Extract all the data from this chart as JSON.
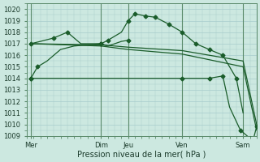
{
  "xlabel": "Pression niveau de la mer( hPa )",
  "background_color": "#cce8e0",
  "grid_color": "#a8cccc",
  "line_color": "#1a5c2a",
  "vline_color": "#5a8a6a",
  "ylim": [
    1009,
    1020.5
  ],
  "yticks": [
    1009,
    1010,
    1011,
    1012,
    1013,
    1014,
    1015,
    1016,
    1017,
    1018,
    1019,
    1020
  ],
  "xlim": [
    0,
    17
  ],
  "x_tick_positions": [
    0.3,
    5.5,
    7.5,
    11.5,
    16.0
  ],
  "x_tick_labels": [
    "Mer",
    "Dim",
    "Jeu",
    "Ven",
    "Sam"
  ],
  "x_vline_positions": [
    0.3,
    5.5,
    7.5,
    11.5,
    16.0
  ],
  "line1_x": [
    0.3,
    0.8,
    1.5,
    2.5,
    3.5,
    5.5,
    6.0,
    7.0,
    7.5,
    8.0,
    8.8,
    9.5,
    10.5,
    11.5,
    12.5,
    13.5,
    14.5,
    15.5,
    16.0
  ],
  "line1_y": [
    1014.0,
    1015.0,
    1015.5,
    1016.5,
    1016.8,
    1017.0,
    1017.3,
    1018.0,
    1019.0,
    1019.6,
    1019.4,
    1019.3,
    1018.7,
    1018.0,
    1017.0,
    1016.5,
    1016.0,
    1014.0,
    1011.0
  ],
  "line1_mx": [
    0.3,
    0.8,
    5.5,
    6.0,
    7.5,
    8.0,
    8.8,
    9.5,
    10.5,
    11.5,
    12.5,
    13.5,
    14.5,
    15.5
  ],
  "line1_my": [
    1014.0,
    1015.0,
    1017.0,
    1017.3,
    1019.0,
    1019.6,
    1019.4,
    1019.3,
    1018.7,
    1018.0,
    1017.0,
    1016.5,
    1016.0,
    1014.0
  ],
  "line2_x": [
    0.3,
    1.0,
    2.0,
    3.0,
    4.0,
    5.5,
    6.0,
    7.0,
    7.5
  ],
  "line2_y": [
    1017.0,
    1017.2,
    1017.5,
    1018.0,
    1017.0,
    1017.0,
    1016.8,
    1017.2,
    1017.3
  ],
  "line2_mx": [
    0.3,
    2.0,
    3.0,
    5.5,
    7.5
  ],
  "line2_my": [
    1017.0,
    1017.5,
    1018.0,
    1017.0,
    1017.3
  ],
  "line3_x": [
    0.3,
    5.5,
    7.5,
    11.5,
    16.0,
    17.0
  ],
  "line3_y": [
    1017.0,
    1016.9,
    1016.7,
    1016.4,
    1015.5,
    1010.0
  ],
  "line4_x": [
    0.3,
    5.5,
    7.5,
    11.5,
    16.0,
    17.0
  ],
  "line4_y": [
    1017.0,
    1016.8,
    1016.5,
    1016.1,
    1015.0,
    1009.5
  ],
  "line5_x": [
    0.3,
    11.5,
    13.5,
    14.5,
    15.0,
    15.8,
    16.5,
    16.8,
    17.0
  ],
  "line5_y": [
    1014.0,
    1014.0,
    1014.0,
    1014.2,
    1011.5,
    1009.5,
    1008.8,
    1008.9,
    1009.8
  ],
  "line5_mx": [
    0.3,
    11.5,
    13.5,
    14.5,
    15.8,
    16.5,
    17.0
  ],
  "line5_my": [
    1014.0,
    1014.0,
    1014.0,
    1014.2,
    1009.5,
    1008.8,
    1009.8
  ]
}
